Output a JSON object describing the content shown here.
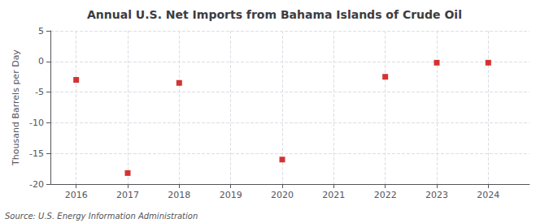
{
  "chart_data": {
    "type": "scatter",
    "title": "Annual U.S. Net Imports from Bahama Islands of Crude Oil",
    "ylabel": "Thousand Barrels per Day",
    "annotations": [
      "Source: U.S. Energy Information Administration"
    ],
    "x": [
      2016,
      2017,
      2018,
      2020,
      2022,
      2023,
      2024
    ],
    "values": [
      -3.0,
      -18.2,
      -3.5,
      -16.0,
      -2.5,
      -0.2,
      -0.2
    ],
    "color": "#cc0000",
    "marker": "square",
    "xlim": [
      2015.5,
      2024.8
    ],
    "ylim": [
      -20,
      5
    ],
    "xticks": [
      2016,
      2017,
      2018,
      2019,
      2020,
      2021,
      2022,
      2023,
      2024
    ],
    "yticks": [
      5,
      0,
      -5,
      -10,
      -15,
      -20
    ],
    "grid": true
  }
}
